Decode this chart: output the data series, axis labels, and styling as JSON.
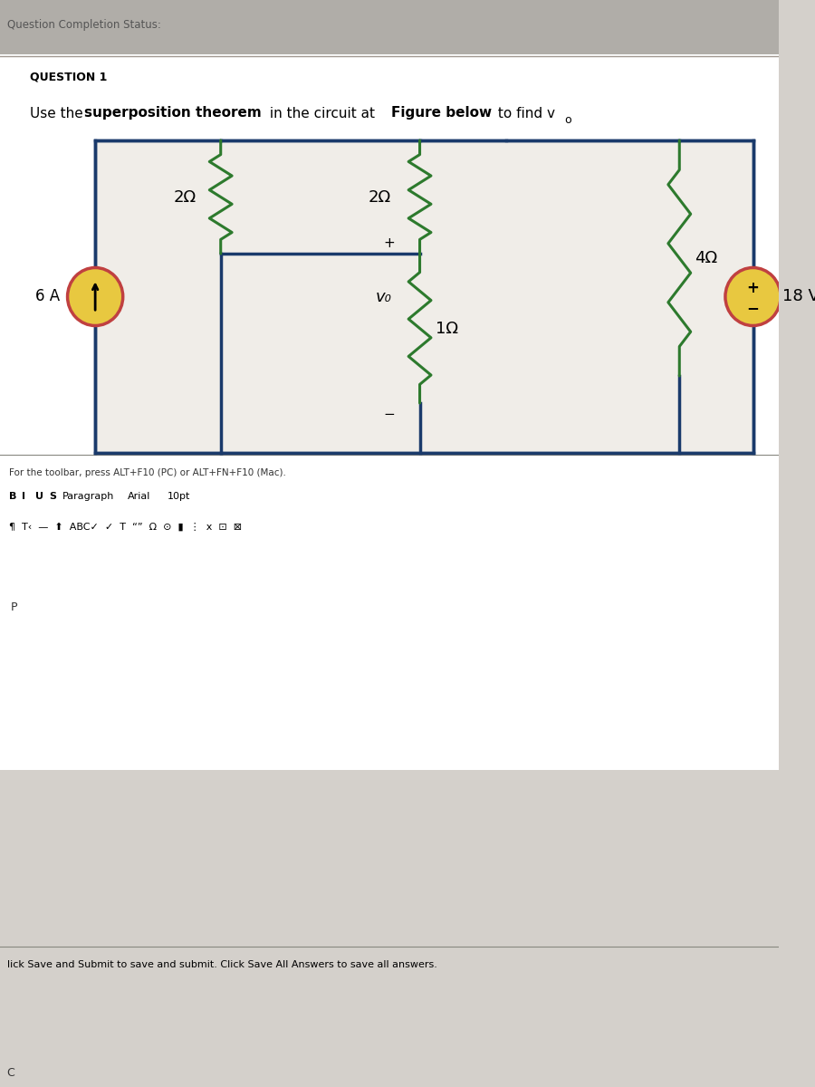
{
  "bg_color": "#d4d0cb",
  "title_bar_color": "#c8c4bc",
  "question_header": "QUESTION 1",
  "question_text_plain": "Use the ",
  "question_text_bold1": "superposition theorem",
  "question_text_plain2": " in the circuit at ",
  "question_text_bold2": "Figure below",
  "question_text_plain3": " to find v",
  "question_sub": "o",
  "circuit_bg": "#f0ede8",
  "circuit_border": "#1a3a6b",
  "wire_color": "#1a3a6b",
  "resistor_color": "#2d7a2d",
  "source_fill_current": "#e8c840",
  "source_fill_voltage": "#e8c840",
  "source_border_current": "#c04040",
  "source_border_voltage": "#c04040",
  "resistors": [
    "2Ω",
    "2Ω",
    "4Ω",
    "1Ω"
  ],
  "current_source": "6 A",
  "voltage_source": "18 V",
  "vo_label": "v₀",
  "toolbar_text": "For the toolbar, press ALT+F10 (PC) or ALT+FN+F10 (Mac).",
  "bottom_text": "lick Save and Submit to save and submit. Click Save All Answers to save all answers.",
  "page_marker": "P",
  "panel_color": "#e8e4e0",
  "header_strip_color": "#b0ada8"
}
